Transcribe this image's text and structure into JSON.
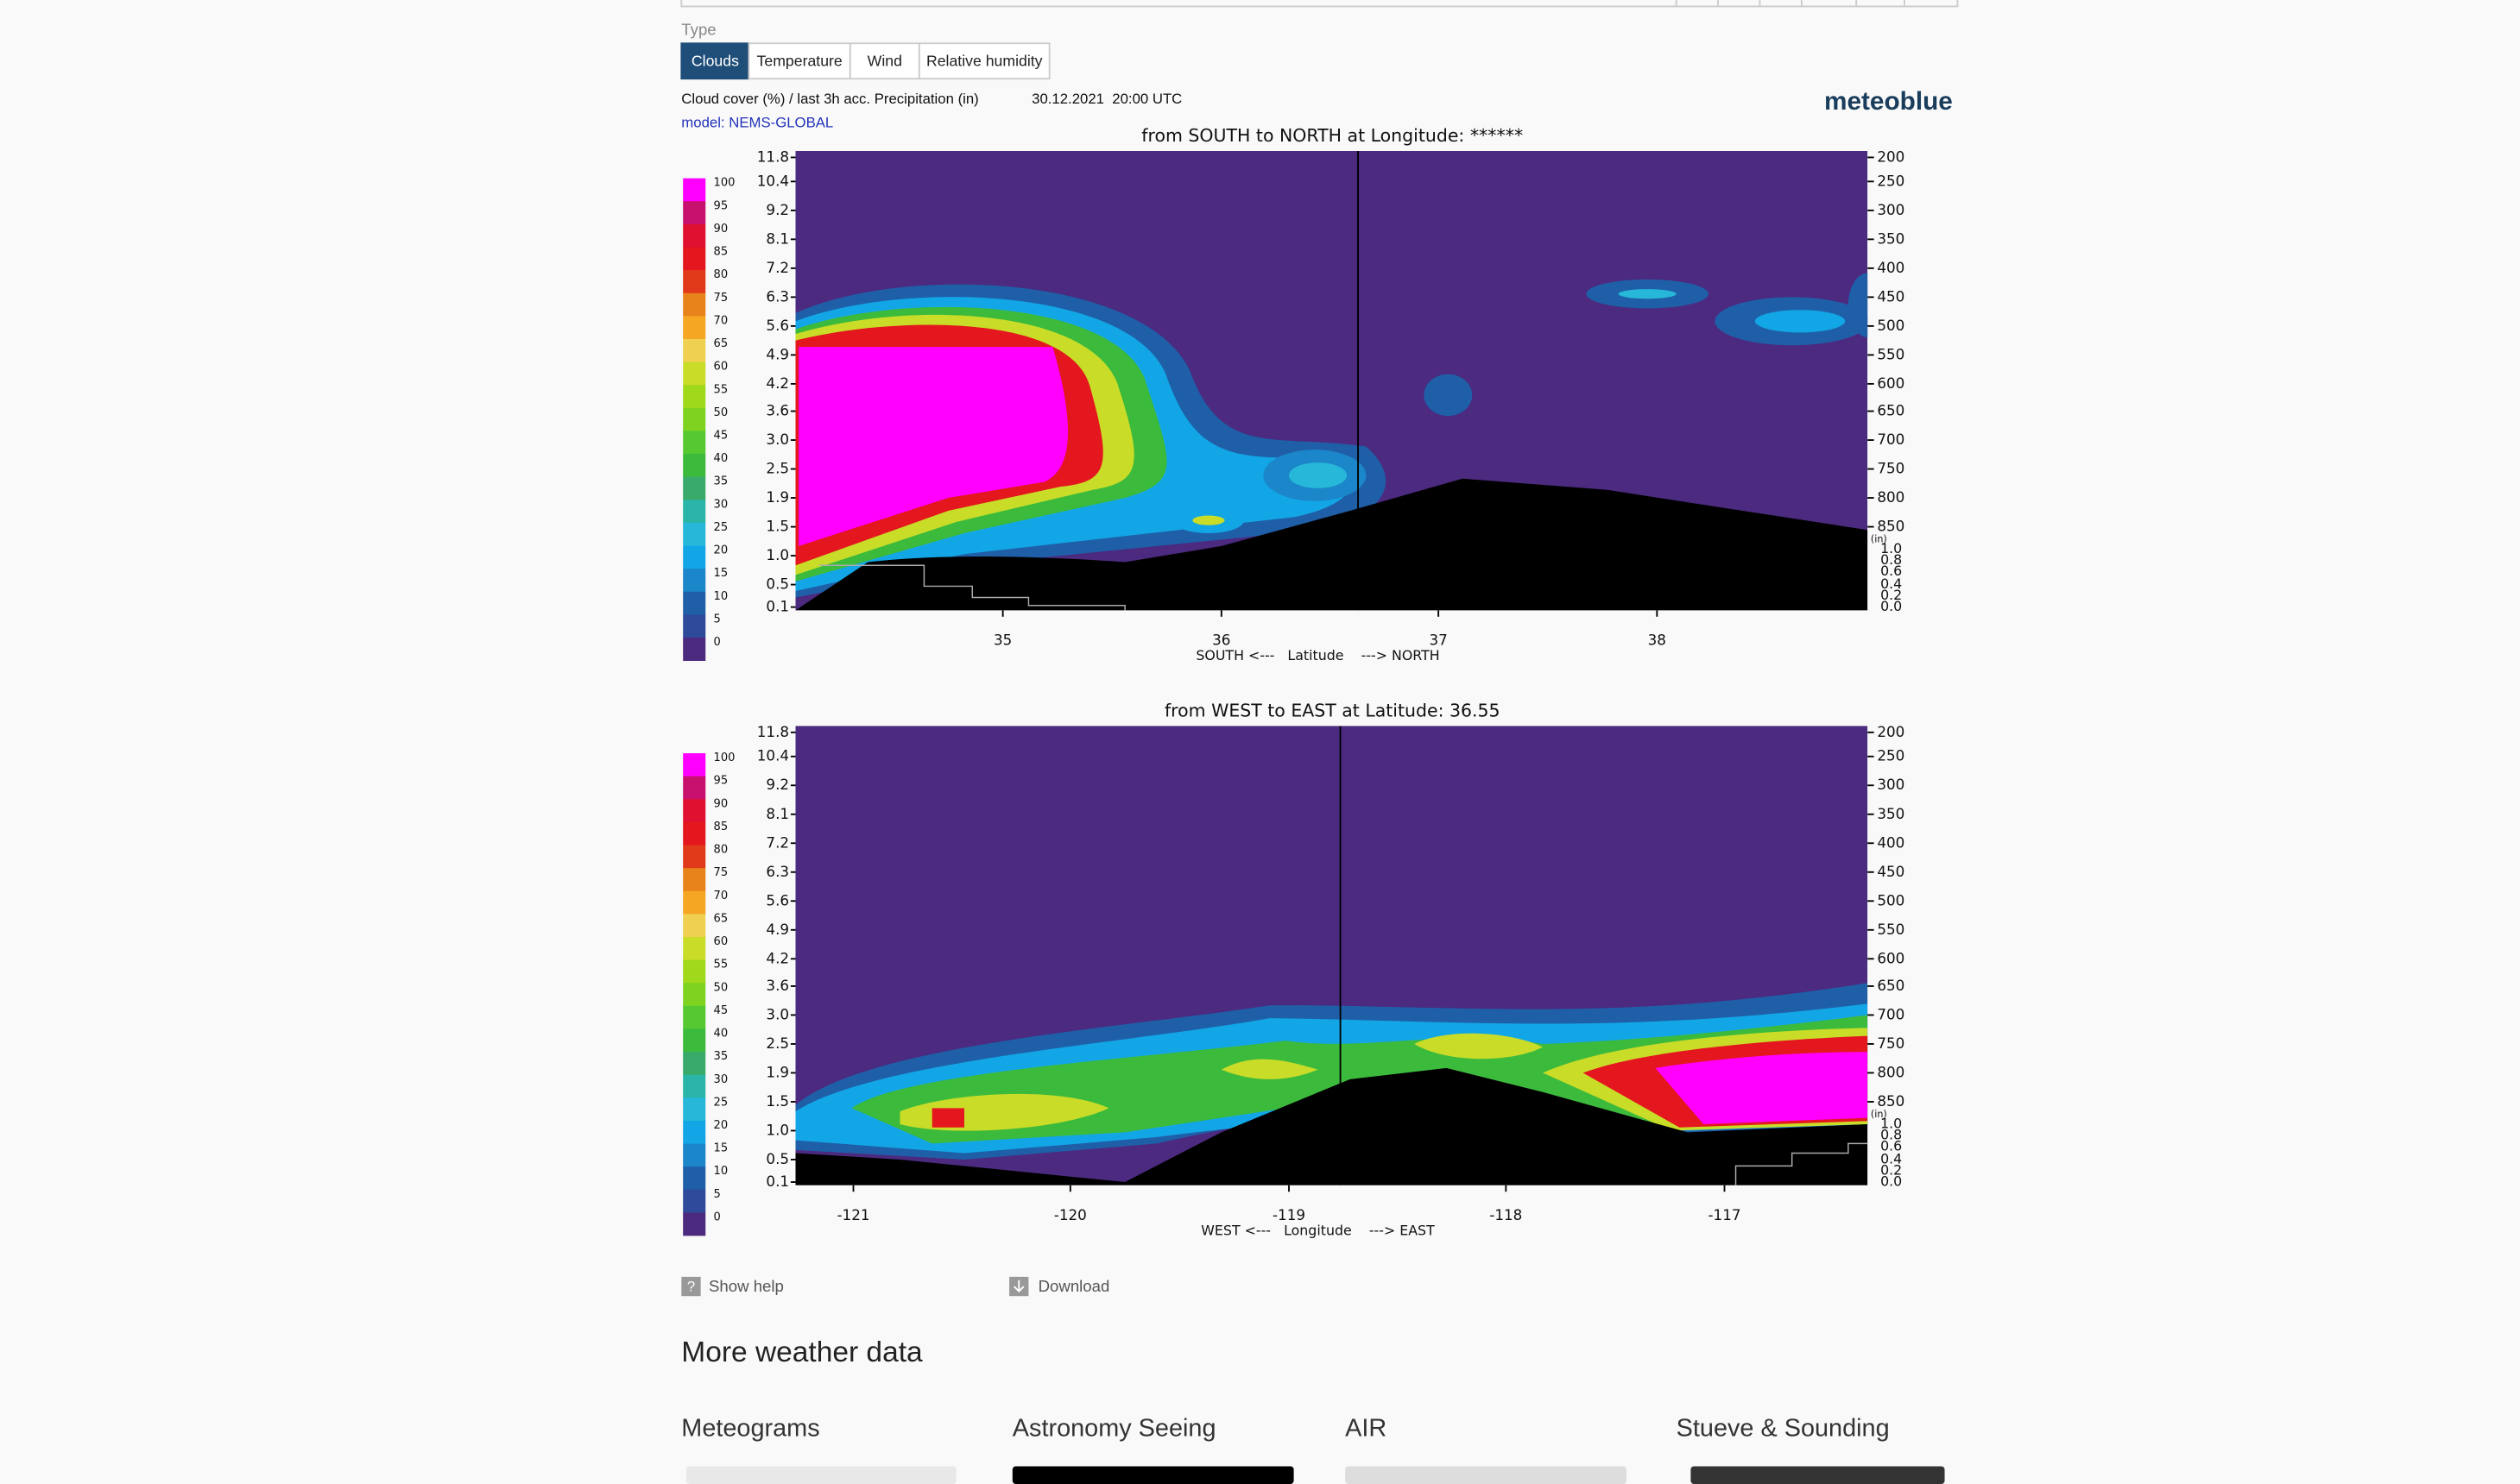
{
  "type_label": "Type",
  "tabs": [
    "Clouds",
    "Temperature",
    "Wind",
    "Relative humidity"
  ],
  "active_tab": 0,
  "caption": "Cloud cover (%) / last 3h acc. Precipitation (in)",
  "datetime": "30.12.2021  20:00 UTC",
  "model": "model: NEMS-GLOBAL",
  "brand": "meteoblue",
  "legend": [
    {
      "label": "100",
      "color": "#ff00ff"
    },
    {
      "label": "95",
      "color": "#c8106e"
    },
    {
      "label": "90",
      "color": "#e01030"
    },
    {
      "label": "85",
      "color": "#e4161e"
    },
    {
      "label": "80",
      "color": "#e03a1a"
    },
    {
      "label": "75",
      "color": "#e8821a"
    },
    {
      "label": "70",
      "color": "#f5a623"
    },
    {
      "label": "65",
      "color": "#f0d050"
    },
    {
      "label": "60",
      "color": "#c8dc28"
    },
    {
      "label": "55",
      "color": "#a0d81c"
    },
    {
      "label": "50",
      "color": "#7ed321"
    },
    {
      "label": "45",
      "color": "#55c832"
    },
    {
      "label": "40",
      "color": "#3cba3c"
    },
    {
      "label": "35",
      "color": "#3aaa6a"
    },
    {
      "label": "30",
      "color": "#2ab5a8"
    },
    {
      "label": "25",
      "color": "#26b7d9"
    },
    {
      "label": "20",
      "color": "#12a6e6"
    },
    {
      "label": "15",
      "color": "#1b86c9"
    },
    {
      "label": "10",
      "color": "#1f5fa8"
    },
    {
      "label": "5",
      "color": "#2f4a9a"
    },
    {
      "label": "0",
      "color": "#4b2a7f"
    }
  ],
  "plots": [
    {
      "title": "from SOUTH to NORTH at Longitude: ******",
      "left_ticks": [
        "11.8",
        "10.4",
        "9.2",
        "8.1",
        "7.2",
        "6.3",
        "5.6",
        "4.9",
        "4.2",
        "3.6",
        "3.0",
        "2.5",
        "1.9",
        "1.5",
        "1.0",
        "0.5",
        "0.1"
      ],
      "right_ticks": [
        "200",
        "250",
        "300",
        "350",
        "400",
        "450",
        "500",
        "550",
        "600",
        "650",
        "700",
        "750",
        "800",
        "850"
      ],
      "precip_ticks": [
        "(in)",
        "1.0",
        "0.8",
        "0.6",
        "0.4",
        "0.2",
        "0.0"
      ],
      "x_ticks": [
        "35",
        "36",
        "37",
        "38"
      ],
      "x_label": "SOUTH <---   Latitude    ---> NORTH"
    },
    {
      "title": "from WEST to EAST at Latitude:  36.55",
      "left_ticks": [
        "11.8",
        "10.4",
        "9.2",
        "8.1",
        "7.2",
        "6.3",
        "5.6",
        "4.9",
        "4.2",
        "3.6",
        "3.0",
        "2.5",
        "1.9",
        "1.5",
        "1.0",
        "0.5",
        "0.1"
      ],
      "right_ticks": [
        "200",
        "250",
        "300",
        "350",
        "400",
        "450",
        "500",
        "550",
        "600",
        "650",
        "700",
        "750",
        "800",
        "850"
      ],
      "precip_ticks": [
        "(in)",
        "1.0",
        "0.8",
        "0.6",
        "0.4",
        "0.2",
        "0.0"
      ],
      "x_ticks": [
        "-121",
        "-120",
        "-119",
        "-118",
        "-117"
      ],
      "x_label": "WEST <---   Longitude    ---> EAST"
    }
  ],
  "links": [
    "Show help",
    "Download"
  ],
  "section_title": "More weather data",
  "cards": [
    "Meteograms",
    "Astronomy Seeing",
    "AIR",
    "Stueve & Sounding"
  ]
}
